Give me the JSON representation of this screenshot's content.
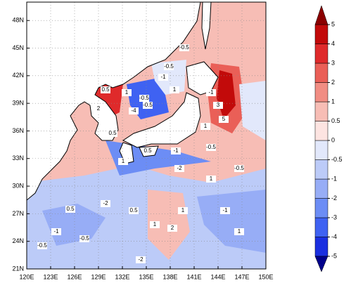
{
  "map": {
    "lon_ticks": [
      {
        "value": 120,
        "label": "120E"
      },
      {
        "value": 123,
        "label": "123E"
      },
      {
        "value": 126,
        "label": "126E"
      },
      {
        "value": 129,
        "label": "129E"
      },
      {
        "value": 132,
        "label": "132E"
      },
      {
        "value": 135,
        "label": "135E"
      },
      {
        "value": 138,
        "label": "138E"
      },
      {
        "value": 141,
        "label": "141E"
      },
      {
        "value": 144,
        "label": "144E"
      },
      {
        "value": 147,
        "label": "147E"
      },
      {
        "value": 150,
        "label": "150E"
      }
    ],
    "lat_ticks": [
      {
        "value": 21,
        "label": "21N"
      },
      {
        "value": 24,
        "label": "24N"
      },
      {
        "value": 27,
        "label": "27N"
      },
      {
        "value": 30,
        "label": "30N"
      },
      {
        "value": 33,
        "label": "33N"
      },
      {
        "value": 36,
        "label": "36N"
      },
      {
        "value": 39,
        "label": "39N"
      },
      {
        "value": 42,
        "label": "42N"
      },
      {
        "value": 45,
        "label": "45N"
      },
      {
        "value": 48,
        "label": "48N"
      }
    ],
    "lonlim": [
      120,
      150
    ],
    "latlim": [
      21,
      50
    ],
    "contour_labels": [
      "-0.5",
      "-0.5",
      "0.5",
      "1",
      "-0.5",
      "-4",
      "2",
      "-1",
      "1",
      "0.5",
      "-0.5",
      "5",
      "3",
      "-1",
      "1",
      "-1",
      "-2",
      "1",
      "0.5",
      "-0.5",
      "-0.5",
      "1",
      "-2",
      "0.5",
      "-1",
      "2",
      "1",
      "-1",
      "0.5",
      "-0.5",
      "1",
      "-2",
      "1",
      "-0.5"
    ],
    "colorbar": {
      "ticks": [
        -5,
        -4,
        -3,
        -2,
        -1,
        -0.5,
        0,
        0.5,
        1,
        2,
        3,
        4,
        5
      ],
      "colors": [
        "#1a2fe0",
        "#3f62f2",
        "#6c8df5",
        "#97adf6",
        "#bccbf8",
        "#e2e8fb",
        "#fde4e1",
        "#f7bdb5",
        "#f18d83",
        "#ea5f57",
        "#df2a2b",
        "#c20a0a"
      ],
      "under_color": "#00008b",
      "over_color": "#8b0000"
    }
  }
}
